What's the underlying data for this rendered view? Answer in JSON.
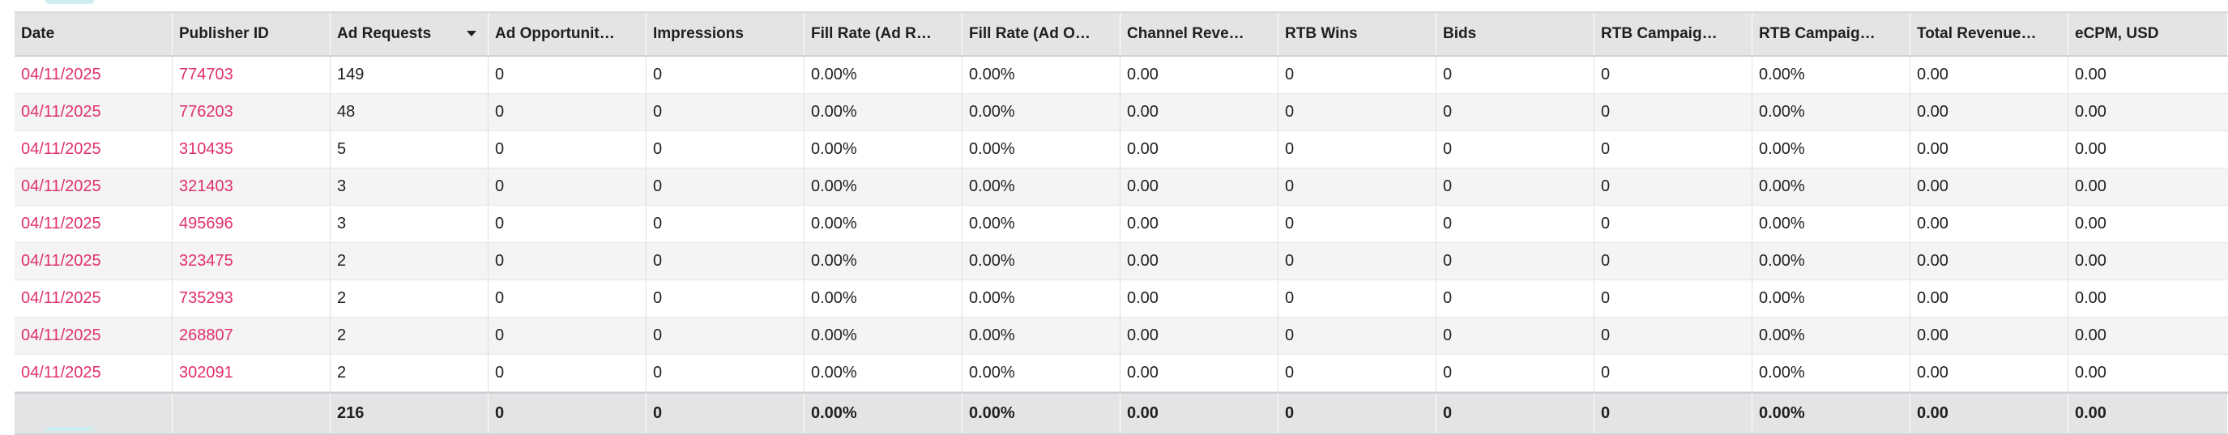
{
  "table": {
    "columns": [
      "Date",
      "Publisher ID",
      "Ad Requests",
      "Ad Opportunit…",
      "Impressions",
      "Fill Rate (Ad R…",
      "Fill Rate (Ad O…",
      "Channel Reve…",
      "RTB Wins",
      "Bids",
      "RTB Campaig…",
      "RTB Campaig…",
      "Total Revenue…",
      "eCPM, USD"
    ],
    "sorted_column": "Ad Requests",
    "sort_direction": "descending",
    "rows": [
      [
        "04/11/2025",
        "774703",
        "149",
        "0",
        "0",
        "0.00%",
        "0.00%",
        "0.00",
        "0",
        "0",
        "0",
        "0.00%",
        "0.00",
        "0.00"
      ],
      [
        "04/11/2025",
        "776203",
        "48",
        "0",
        "0",
        "0.00%",
        "0.00%",
        "0.00",
        "0",
        "0",
        "0",
        "0.00%",
        "0.00",
        "0.00"
      ],
      [
        "04/11/2025",
        "310435",
        "5",
        "0",
        "0",
        "0.00%",
        "0.00%",
        "0.00",
        "0",
        "0",
        "0",
        "0.00%",
        "0.00",
        "0.00"
      ],
      [
        "04/11/2025",
        "321403",
        "3",
        "0",
        "0",
        "0.00%",
        "0.00%",
        "0.00",
        "0",
        "0",
        "0",
        "0.00%",
        "0.00",
        "0.00"
      ],
      [
        "04/11/2025",
        "495696",
        "3",
        "0",
        "0",
        "0.00%",
        "0.00%",
        "0.00",
        "0",
        "0",
        "0",
        "0.00%",
        "0.00",
        "0.00"
      ],
      [
        "04/11/2025",
        "323475",
        "2",
        "0",
        "0",
        "0.00%",
        "0.00%",
        "0.00",
        "0",
        "0",
        "0",
        "0.00%",
        "0.00",
        "0.00"
      ],
      [
        "04/11/2025",
        "735293",
        "2",
        "0",
        "0",
        "0.00%",
        "0.00%",
        "0.00",
        "0",
        "0",
        "0",
        "0.00%",
        "0.00",
        "0.00"
      ],
      [
        "04/11/2025",
        "268807",
        "2",
        "0",
        "0",
        "0.00%",
        "0.00%",
        "0.00",
        "0",
        "0",
        "0",
        "0.00%",
        "0.00",
        "0.00"
      ],
      [
        "04/11/2025",
        "302091",
        "2",
        "0",
        "0",
        "0.00%",
        "0.00%",
        "0.00",
        "0",
        "0",
        "0",
        "0.00%",
        "0.00",
        "0.00"
      ]
    ],
    "totals": [
      "",
      "",
      "216",
      "0",
      "0",
      "0.00%",
      "0.00%",
      "0.00",
      "0",
      "0",
      "0",
      "0.00%",
      "0.00",
      "0.00"
    ]
  },
  "colors": {
    "link": "#e0306a",
    "header_bg": "#e4e4e7",
    "stripe_bg": "#f4f4f5",
    "scroll_accent": "#cfeef2"
  },
  "icons": {
    "sort": "chevron-down-icon"
  }
}
